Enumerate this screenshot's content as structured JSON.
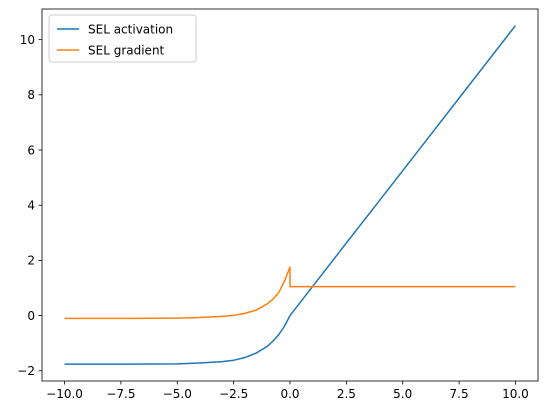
{
  "chart_data": {
    "type": "line",
    "title": "",
    "xlabel": "",
    "ylabel": "",
    "xlim": [
      -11.0,
      11.0
    ],
    "ylim": [
      -2.37,
      11.11
    ],
    "x_ticks": [
      -10.0,
      -7.5,
      -5.0,
      -2.5,
      0.0,
      2.5,
      5.0,
      7.5,
      10.0
    ],
    "x_tick_labels": [
      "−10.0",
      "−7.5",
      "−5.0",
      "−2.5",
      "0.0",
      "2.5",
      "5.0",
      "7.5",
      "10.0"
    ],
    "y_ticks": [
      -2,
      0,
      2,
      4,
      6,
      8,
      10
    ],
    "y_tick_labels": [
      "−2",
      "0",
      "2",
      "4",
      "6",
      "8",
      "10"
    ],
    "grid": false,
    "legend_position": "top-left",
    "series": [
      {
        "name": "SEL activation",
        "color": "#1f77b4",
        "x": [
          -10.0,
          -7.5,
          -5.0,
          -4.0,
          -3.0,
          -2.5,
          -2.0,
          -1.5,
          -1.0,
          -0.75,
          -0.5,
          -0.25,
          0.0,
          2.5,
          5.0,
          7.5,
          10.0
        ],
        "y": [
          -1.76,
          -1.76,
          -1.75,
          -1.72,
          -1.67,
          -1.62,
          -1.52,
          -1.36,
          -1.11,
          -0.92,
          -0.69,
          -0.39,
          0.0,
          2.63,
          5.25,
          7.88,
          10.51
        ]
      },
      {
        "name": "SEL gradient",
        "color": "#ff7f0e",
        "x": [
          -10.0,
          -7.5,
          -5.0,
          -4.0,
          -3.0,
          -2.5,
          -2.0,
          -1.5,
          -1.0,
          -0.75,
          -0.5,
          -0.25,
          -0.001,
          0.0,
          2.5,
          5.0,
          7.5,
          10.0
        ],
        "y": [
          -0.1,
          -0.1,
          -0.09,
          -0.07,
          -0.03,
          0.01,
          0.08,
          0.2,
          0.43,
          0.6,
          0.83,
          1.24,
          1.76,
          1.05,
          1.05,
          1.05,
          1.05,
          1.05
        ]
      }
    ]
  }
}
